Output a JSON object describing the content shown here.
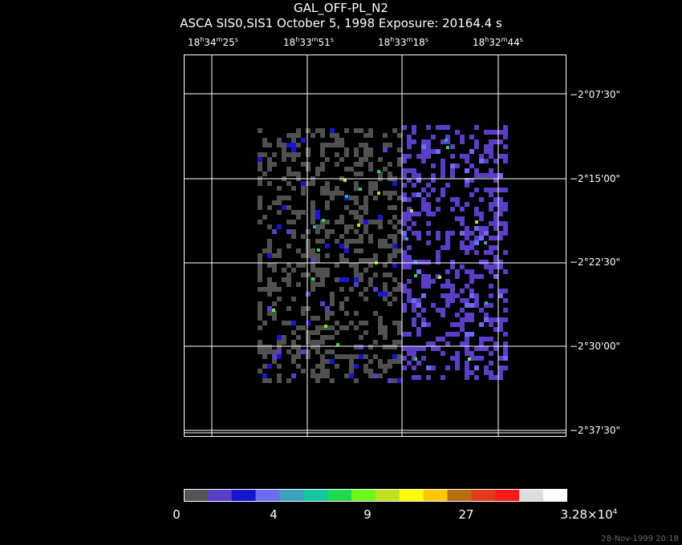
{
  "header": {
    "title": "GAL_OFF-PL_N2",
    "subtitle": "ASCA SIS0,SIS1 October 5, 1998 Exposure: 20164.4 s"
  },
  "ra_ticks": [
    {
      "h": "18",
      "m": "34",
      "s": "25"
    },
    {
      "h": "18",
      "m": "33",
      "s": "51"
    },
    {
      "h": "18",
      "m": "33",
      "s": "18"
    },
    {
      "h": "18",
      "m": "32",
      "s": "44"
    }
  ],
  "ra_units": {
    "h": "h",
    "m": "m",
    "s": "s"
  },
  "dec_ticks": [
    "−2°07'30\"",
    "−2°15'00\"",
    "−2°22'30\"",
    "−2°30'00\"",
    "−2°37'30\""
  ],
  "colorbar": {
    "colors": [
      "#555555",
      "#5a3ec8",
      "#1616d2",
      "#6c6cf2",
      "#3ea0c0",
      "#12c8a0",
      "#1ed84e",
      "#6ef51e",
      "#c0e020",
      "#ffff00",
      "#ffc800",
      "#b86e10",
      "#e03c1a",
      "#ff1a1a",
      "#dddddd",
      "#ffffff"
    ],
    "labels": [
      {
        "text": "0"
      },
      {
        "text": "4"
      },
      {
        "text": "9"
      },
      {
        "text": "27"
      },
      {
        "text": "3.28×10",
        "sup": "4"
      }
    ]
  },
  "timestamp": "28-Nov-1999 20:18"
}
